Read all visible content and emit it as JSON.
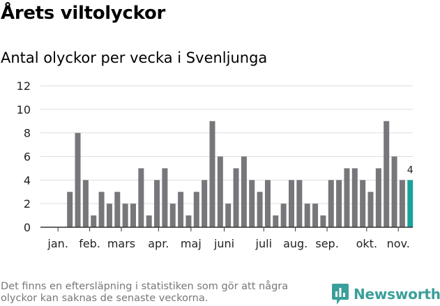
{
  "chart_data": {
    "type": "bar",
    "title": "Årets viltolyckor",
    "subtitle": "Antal olyckor per vecka i Svenljunga",
    "xlabel": "",
    "ylabel": "",
    "ylim": [
      0,
      12
    ],
    "yticks": [
      0,
      2,
      4,
      6,
      8,
      10,
      12
    ],
    "grid": true,
    "weeks": [
      1,
      2,
      3,
      4,
      5,
      6,
      7,
      8,
      9,
      10,
      11,
      12,
      13,
      14,
      15,
      16,
      17,
      18,
      19,
      20,
      21,
      22,
      23,
      24,
      25,
      26,
      27,
      28,
      29,
      30,
      31,
      32,
      33,
      34,
      35,
      36,
      37,
      38,
      39,
      40,
      41,
      42,
      43,
      44,
      45,
      46
    ],
    "values": [
      0,
      0,
      3,
      8,
      4,
      1,
      3,
      2,
      3,
      2,
      2,
      5,
      1,
      4,
      5,
      2,
      3,
      1,
      3,
      4,
      9,
      6,
      2,
      5,
      6,
      4,
      3,
      4,
      1,
      2,
      4,
      4,
      2,
      2,
      1,
      4,
      4,
      5,
      5,
      4,
      3,
      5,
      9,
      6,
      4,
      4
    ],
    "highlight": {
      "week": 46,
      "label": "4",
      "color": "#1aa39a"
    },
    "bar_color": "#77767a",
    "month_labels": [
      {
        "label": "jan.",
        "week": 1.5
      },
      {
        "label": "feb.",
        "week": 5.5
      },
      {
        "label": "mars",
        "week": 9.5
      },
      {
        "label": "apr.",
        "week": 14.2
      },
      {
        "label": "maj",
        "week": 18.3
      },
      {
        "label": "juni",
        "week": 22.5
      },
      {
        "label": "juli",
        "week": 27.5
      },
      {
        "label": "aug.",
        "week": 31.5
      },
      {
        "label": "sep.",
        "week": 35.5
      },
      {
        "label": "okt.",
        "week": 40.5
      },
      {
        "label": "nov.",
        "week": 44.5
      }
    ]
  },
  "footnote": "Det finns en eftersläpning i statistiken som gör att några olyckor kan saknas de senaste veckorna.",
  "brand": {
    "name": "Newsworthy",
    "color": "#3a9f9a"
  }
}
